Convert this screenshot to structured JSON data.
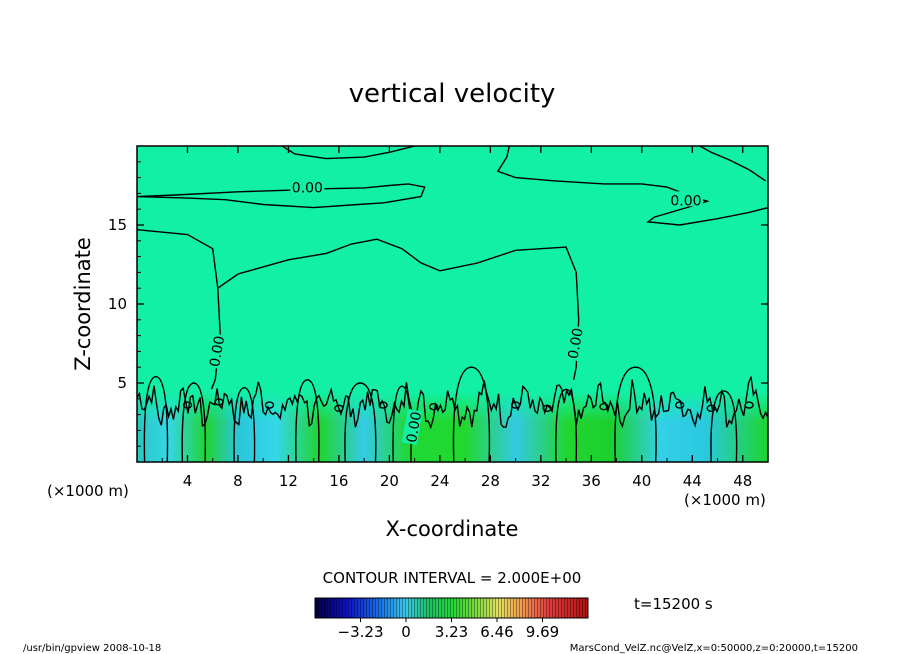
{
  "chart_data": {
    "type": "heatmap",
    "title": "vertical velocity",
    "xlabel": "X-coordinate",
    "ylabel": "Z-coordinate",
    "x_unit": "(×1000 m)",
    "y_unit": "(×1000 m)",
    "xlim": [
      0,
      50
    ],
    "ylim": [
      0,
      20
    ],
    "x_ticks": [
      4,
      8,
      12,
      16,
      20,
      24,
      28,
      32,
      36,
      40,
      44,
      48
    ],
    "y_ticks": [
      5,
      10,
      15
    ],
    "contour_label": "0.00",
    "contour_interval": "CONTOUR INTERVAL = 2.000E+00",
    "colorbar": {
      "ticks": [
        -3.23,
        0,
        3.23,
        6.46,
        9.69
      ],
      "tick_labels": [
        "−3.23",
        "0",
        "3.23",
        "6.46",
        "9.69"
      ],
      "range": [
        -6.46,
        12.92
      ]
    },
    "time_label": "t=15200 s",
    "footer_left": "/usr/bin/gpview  2008-10-18",
    "footer_right": "MarsCond_VelZ.nc@VelZ,x=0:50000,z=0:20000,t=15200",
    "colors": {
      "background_field": "#12f0a6",
      "near_surface_green": "#22d62e",
      "near_surface_cyan": "#27c7e6",
      "contour": "#000000"
    }
  }
}
